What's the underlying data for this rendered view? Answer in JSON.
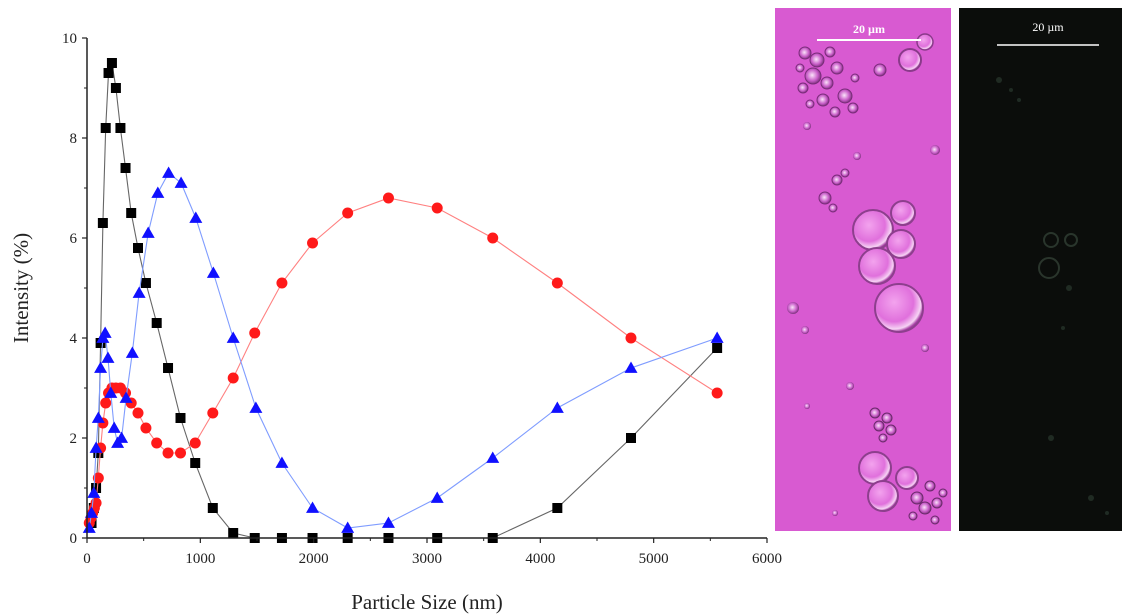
{
  "chart_data": {
    "type": "scatter",
    "xlabel": "Particle Size (nm)",
    "ylabel": "Intensity (%)",
    "xlim": [
      0,
      6000
    ],
    "ylim": [
      0,
      10
    ],
    "xticks": [
      "0",
      "1000",
      "2000",
      "3000",
      "4000",
      "5000",
      "6000"
    ],
    "yticks": [
      "0",
      "2",
      "4",
      "6",
      "8",
      "10"
    ],
    "grid": false,
    "legend": "none",
    "series": [
      {
        "marker": "square",
        "color": "#000000",
        "line_color": "#666666",
        "points": [
          [
            40,
            0.3
          ],
          [
            60,
            0.6
          ],
          [
            80,
            1.0
          ],
          [
            100,
            1.7
          ],
          [
            120,
            3.9
          ],
          [
            140,
            6.3
          ],
          [
            165,
            8.2
          ],
          [
            190,
            9.3
          ],
          [
            220,
            9.5
          ],
          [
            255,
            9.0
          ],
          [
            295,
            8.2
          ],
          [
            340,
            7.4
          ],
          [
            390,
            6.5
          ],
          [
            450,
            5.8
          ],
          [
            520,
            5.1
          ],
          [
            615,
            4.3
          ],
          [
            715,
            3.4
          ],
          [
            825,
            2.4
          ],
          [
            955,
            1.5
          ],
          [
            1110,
            0.6
          ],
          [
            1290,
            0.1
          ],
          [
            1480,
            0.0
          ],
          [
            1720,
            0.0
          ],
          [
            1990,
            0.0
          ],
          [
            2300,
            0.0
          ],
          [
            2660,
            0.0
          ],
          [
            3090,
            0.0
          ],
          [
            3580,
            0.0
          ],
          [
            4150,
            0.6
          ],
          [
            4800,
            2.0
          ],
          [
            5560,
            3.8
          ]
        ]
      },
      {
        "marker": "circle",
        "color": "#ff1a1a",
        "line_color": "#ff8080",
        "points": [
          [
            20,
            0.3
          ],
          [
            35,
            0.4
          ],
          [
            50,
            0.5
          ],
          [
            65,
            0.6
          ],
          [
            80,
            0.7
          ],
          [
            100,
            1.2
          ],
          [
            120,
            1.8
          ],
          [
            140,
            2.3
          ],
          [
            165,
            2.7
          ],
          [
            190,
            2.9
          ],
          [
            220,
            3.0
          ],
          [
            255,
            3.0
          ],
          [
            295,
            3.0
          ],
          [
            340,
            2.9
          ],
          [
            390,
            2.7
          ],
          [
            450,
            2.5
          ],
          [
            520,
            2.2
          ],
          [
            615,
            1.9
          ],
          [
            715,
            1.7
          ],
          [
            825,
            1.7
          ],
          [
            955,
            1.9
          ],
          [
            1110,
            2.5
          ],
          [
            1290,
            3.2
          ],
          [
            1480,
            4.1
          ],
          [
            1720,
            5.1
          ],
          [
            1990,
            5.9
          ],
          [
            2300,
            6.5
          ],
          [
            2660,
            6.8
          ],
          [
            3090,
            6.6
          ],
          [
            3580,
            6.0
          ],
          [
            4150,
            5.1
          ],
          [
            4800,
            4.0
          ],
          [
            5560,
            2.9
          ]
        ]
      },
      {
        "marker": "triangle",
        "color": "#1010ff",
        "line_color": "#7f9cff",
        "points": [
          [
            20,
            0.2
          ],
          [
            40,
            0.5
          ],
          [
            60,
            0.9
          ],
          [
            80,
            1.8
          ],
          [
            100,
            2.4
          ],
          [
            120,
            3.4
          ],
          [
            140,
            4.0
          ],
          [
            160,
            4.1
          ],
          [
            185,
            3.6
          ],
          [
            210,
            2.9
          ],
          [
            240,
            2.2
          ],
          [
            270,
            1.9
          ],
          [
            305,
            2.0
          ],
          [
            345,
            2.8
          ],
          [
            400,
            3.7
          ],
          [
            460,
            4.9
          ],
          [
            540,
            6.1
          ],
          [
            625,
            6.9
          ],
          [
            720,
            7.3
          ],
          [
            830,
            7.1
          ],
          [
            960,
            6.4
          ],
          [
            1115,
            5.3
          ],
          [
            1290,
            4.0
          ],
          [
            1490,
            2.6
          ],
          [
            1720,
            1.5
          ],
          [
            1990,
            0.6
          ],
          [
            2300,
            0.2
          ],
          [
            2660,
            0.3
          ],
          [
            3090,
            0.8
          ],
          [
            3580,
            1.6
          ],
          [
            4150,
            2.6
          ],
          [
            4800,
            3.4
          ],
          [
            5560,
            4.0
          ]
        ]
      }
    ]
  },
  "images": {
    "brightfield": {
      "scale_label": "20 µm",
      "color": "#d85ad1"
    },
    "fluorescence": {
      "scale_label": "20 µm",
      "color": "#0b0d0b"
    }
  }
}
